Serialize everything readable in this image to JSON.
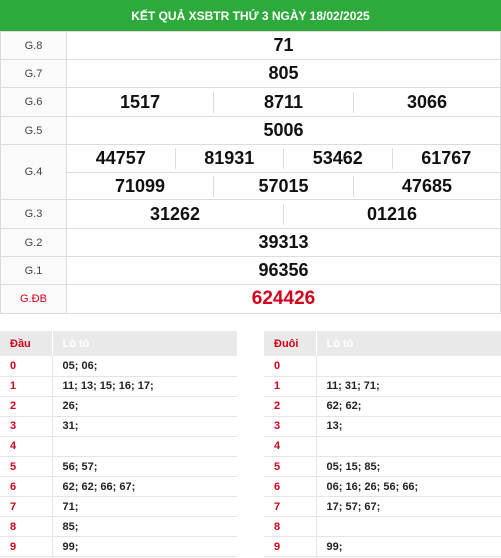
{
  "title": "KẾT QUẢ XSBTR THỨ 3 NGÀY 18/02/2025",
  "prizes": {
    "g8": {
      "label": "G.8",
      "values": [
        "71"
      ]
    },
    "g7": {
      "label": "G.7",
      "values": [
        "805"
      ]
    },
    "g6": {
      "label": "G.6",
      "values": [
        "1517",
        "8711",
        "3066"
      ]
    },
    "g5": {
      "label": "G.5",
      "values": [
        "5006"
      ]
    },
    "g4": {
      "label": "G.4",
      "values": [
        "44757",
        "81931",
        "53462",
        "61767",
        "71099",
        "57015",
        "47685"
      ]
    },
    "g3": {
      "label": "G.3",
      "values": [
        "31262",
        "01216"
      ]
    },
    "g2": {
      "label": "G.2",
      "values": [
        "39313"
      ]
    },
    "g1": {
      "label": "G.1",
      "values": [
        "96356"
      ]
    },
    "gdb": {
      "label": "G.ĐB",
      "values": [
        "624426"
      ]
    }
  },
  "dau": {
    "header_key": "Đầu",
    "header_value": "Lô tô",
    "rows": [
      {
        "k": "0",
        "v": "05; 06;"
      },
      {
        "k": "1",
        "v": "11; 13; 15; 16; 17;"
      },
      {
        "k": "2",
        "v": "26;"
      },
      {
        "k": "3",
        "v": "31;"
      },
      {
        "k": "4",
        "v": ""
      },
      {
        "k": "5",
        "v": "56; 57;"
      },
      {
        "k": "6",
        "v": "62; 62; 66; 67;"
      },
      {
        "k": "7",
        "v": "71;"
      },
      {
        "k": "8",
        "v": "85;"
      },
      {
        "k": "9",
        "v": "99;"
      }
    ]
  },
  "duoi": {
    "header_key": "Đuôi",
    "header_value": "Lô tô",
    "rows": [
      {
        "k": "0",
        "v": ""
      },
      {
        "k": "1",
        "v": "11; 31; 71;"
      },
      {
        "k": "2",
        "v": "62; 62;"
      },
      {
        "k": "3",
        "v": "13;"
      },
      {
        "k": "4",
        "v": ""
      },
      {
        "k": "5",
        "v": "05; 15; 85;"
      },
      {
        "k": "6",
        "v": "06; 16; 26; 56; 66;"
      },
      {
        "k": "7",
        "v": "17; 57; 67;"
      },
      {
        "k": "8",
        "v": ""
      },
      {
        "k": "9",
        "v": "99;"
      }
    ]
  },
  "colors": {
    "header_bg": "#2eaa3c",
    "special": "#d0021b"
  }
}
